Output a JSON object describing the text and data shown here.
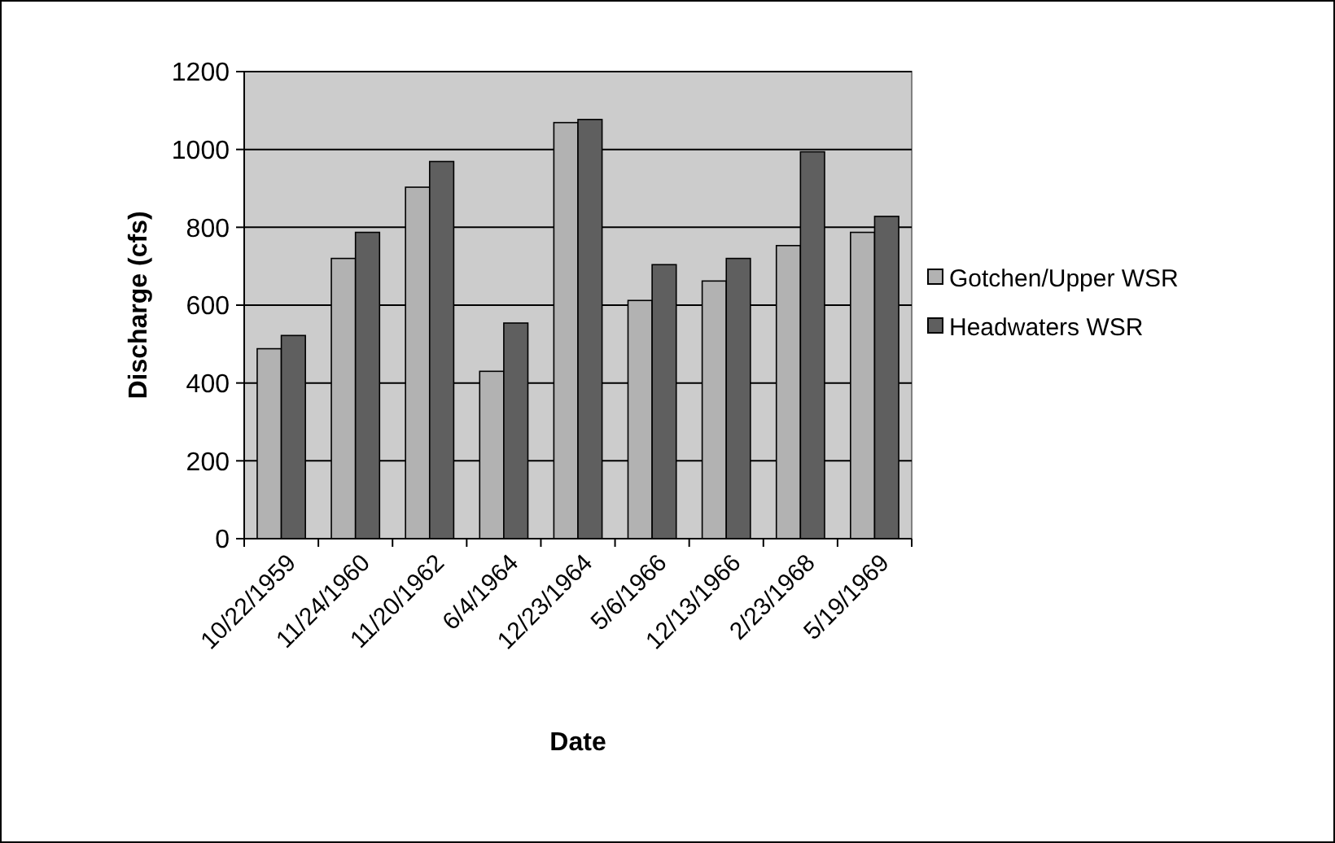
{
  "chart_data": {
    "type": "bar",
    "xlabel": "Date",
    "ylabel": "Discharge (cfs)",
    "categories": [
      "10/22/1959",
      "11/24/1960",
      "11/20/1962",
      "6/4/1964",
      "12/23/1964",
      "5/6/1966",
      "12/13/1966",
      "2/23/1968",
      "5/19/1969"
    ],
    "series": [
      {
        "name": "Gotchen/Upper WSR",
        "color": "#b2b2b2",
        "values": [
          488,
          720,
          903,
          430,
          1069,
          612,
          662,
          753,
          787
        ]
      },
      {
        "name": "Headwaters WSR",
        "color": "#5f5f5f",
        "values": [
          522,
          787,
          969,
          554,
          1077,
          704,
          720,
          994,
          828
        ]
      }
    ],
    "ylim": [
      0,
      1200
    ],
    "yticks": [
      0,
      200,
      400,
      600,
      800,
      1000,
      1200
    ],
    "grid": "y",
    "legend": "right"
  }
}
